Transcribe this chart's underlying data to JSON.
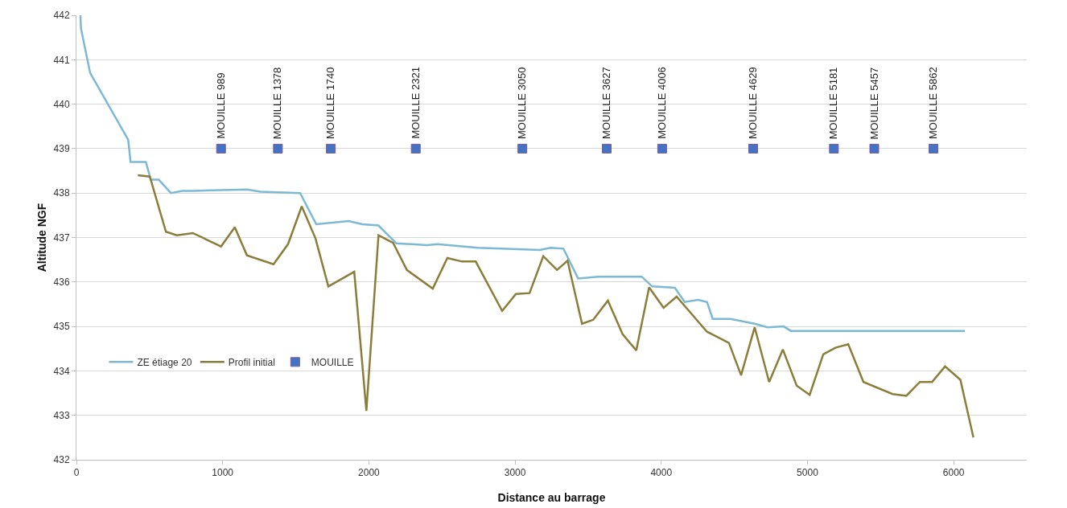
{
  "chart_data": {
    "type": "line",
    "xlabel": "Distance au barrage",
    "ylabel": "Altitude NGF",
    "xlim": [
      0,
      6500
    ],
    "xticks": [
      0,
      1000,
      2000,
      3000,
      4000,
      5000,
      6000
    ],
    "ylim": [
      432,
      442
    ],
    "yticks": [
      432,
      433,
      434,
      435,
      436,
      437,
      438,
      439,
      440,
      441,
      442
    ],
    "grid": "y",
    "legend": "bottom left",
    "series": [
      {
        "name": "ZE étiage 20",
        "marker": "none",
        "color": "#7cb9d6",
        "x": [
          27,
          31,
          94,
          354,
          370,
          475,
          508,
          563,
          646,
          723,
          790,
          1166,
          1259,
          1530,
          1640,
          1862,
          1955,
          2066,
          2188,
          2398,
          2470,
          2744,
          3169,
          3243,
          3331,
          3431,
          3570,
          3866,
          3938,
          4093,
          4160,
          4253,
          4313,
          4352,
          4473,
          4639,
          4727,
          4838,
          4886,
          6077
        ],
        "values": [
          442,
          441.7,
          440.7,
          439.2,
          438.7,
          438.7,
          438.3,
          438.3,
          438,
          438.05,
          438.05,
          438.08,
          438.03,
          438,
          437.3,
          437.37,
          437.3,
          437.27,
          436.87,
          436.83,
          436.85,
          436.77,
          436.72,
          436.77,
          436.75,
          436.08,
          436.12,
          436.12,
          435.9,
          435.87,
          435.55,
          435.6,
          435.55,
          435.17,
          435.17,
          435.06,
          434.98,
          435,
          434.9,
          434.9
        ]
      },
      {
        "name": "Profil initial",
        "marker": "none",
        "color": "#8b7d3a",
        "x": [
          420,
          502,
          612,
          686,
          796,
          989,
          1083,
          1166,
          1348,
          1447,
          1541,
          1635,
          1723,
          1900,
          1983,
          2066,
          2166,
          2260,
          2437,
          2537,
          2637,
          2731,
          2912,
          3006,
          3099,
          3193,
          3287,
          3359,
          3458,
          3535,
          3635,
          3735,
          3829,
          3917,
          4016,
          4105,
          4313,
          4380,
          4463,
          4546,
          4639,
          4738,
          4832,
          4926,
          5015,
          5108,
          5191,
          5279,
          5383,
          5582,
          5676,
          5769,
          5852,
          5941,
          6046,
          6135
        ],
        "values": [
          438.4,
          438.37,
          437.13,
          437.05,
          437.1,
          436.8,
          437.23,
          436.6,
          436.4,
          436.85,
          437.7,
          436.98,
          435.9,
          436.23,
          433.1,
          437.05,
          436.88,
          436.27,
          435.85,
          436.54,
          436.46,
          436.46,
          435.35,
          435.73,
          435.75,
          436.58,
          436.27,
          436.48,
          435.06,
          435.15,
          435.58,
          434.83,
          434.46,
          435.88,
          435.42,
          435.67,
          434.88,
          434.77,
          434.63,
          433.9,
          434.98,
          433.75,
          434.48,
          433.67,
          433.46,
          434.37,
          434.52,
          434.6,
          433.75,
          433.48,
          433.44,
          433.75,
          433.75,
          434.1,
          433.8,
          432.5
        ]
      },
      {
        "name": "MOUILLE",
        "type": "scatter",
        "marker": "square",
        "color": "#4472c4",
        "x": [
          989,
          1378,
          1740,
          2321,
          3050,
          3627,
          4006,
          4629,
          5181,
          5457,
          5862
        ],
        "values": [
          439,
          439,
          439,
          439,
          439,
          439,
          439,
          439,
          439,
          439,
          439
        ],
        "value_labels": [
          "MOUILLE 989",
          "MOUILLE 1378",
          "MOUILLE 1740",
          "MOUILLE 2321",
          "MOUILLE 3050",
          "MOUILLE 3627",
          "MOUILLE 4006",
          "MOUILLE 4629",
          "MOUILLE 5181",
          "MOUILLE 5457",
          "MOUILLE 5862"
        ]
      }
    ]
  }
}
